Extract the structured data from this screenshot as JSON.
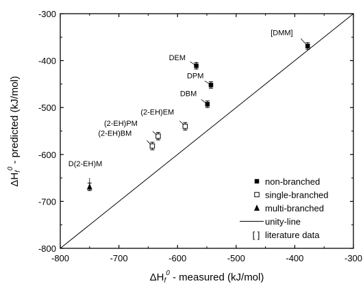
{
  "chart_data": {
    "type": "scatter",
    "title": "",
    "xlabel": {
      "symbol": "ΔH",
      "sub": "f",
      "sup": "0",
      "text": " - measured (kJ/mol)"
    },
    "ylabel": {
      "symbol": "ΔH",
      "sub": "f",
      "sup": "0",
      "text": " - predicted (kJ/mol)"
    },
    "xlim": [
      -800,
      -300
    ],
    "ylim": [
      -800,
      -300
    ],
    "xticks": [
      -800,
      -700,
      -600,
      -500,
      -400,
      -300
    ],
    "yticks": [
      -800,
      -700,
      -600,
      -500,
      -400,
      -300
    ],
    "grid": false,
    "legend_position": "bottom-right",
    "series": [
      {
        "name": "non-branched",
        "marker": "filled-square",
        "points": [
          {
            "label": "[DMM]",
            "x": -378,
            "y": -369,
            "err": 7
          },
          {
            "label": "DEM",
            "x": -568,
            "y": -411,
            "err": 7
          },
          {
            "label": "DPM",
            "x": -543,
            "y": -452,
            "err": 7
          },
          {
            "label": "DBM",
            "x": -549,
            "y": -493,
            "err": 7
          }
        ]
      },
      {
        "name": "single-branched",
        "marker": "open-square",
        "points": [
          {
            "label": "(2-EH)EM",
            "x": -587,
            "y": -540,
            "err": 8
          },
          {
            "label": "(2-EH)PM",
            "x": -633,
            "y": -561,
            "err": 8
          },
          {
            "label": "(2-EH)BM",
            "x": -643,
            "y": -582,
            "err": 8
          }
        ]
      },
      {
        "name": "multi-branched",
        "marker": "filled-triangle",
        "points": [
          {
            "label": "D(2-EH)M",
            "x": -750,
            "y": -669,
            "err": 8
          }
        ]
      }
    ],
    "reference_line": {
      "name": "unity-line",
      "points": [
        [
          -800,
          -800
        ],
        [
          -300,
          -300
        ]
      ]
    },
    "legend_items": [
      {
        "symbol": "filled-square",
        "text": "non-branched"
      },
      {
        "symbol": "open-square",
        "text": "single-branched"
      },
      {
        "symbol": "filled-triangle",
        "text": "multi-branched"
      },
      {
        "symbol": "line",
        "text": "unity-line"
      },
      {
        "symbol": "brackets",
        "glyph": "[ ]",
        "text": "literature data"
      }
    ]
  }
}
